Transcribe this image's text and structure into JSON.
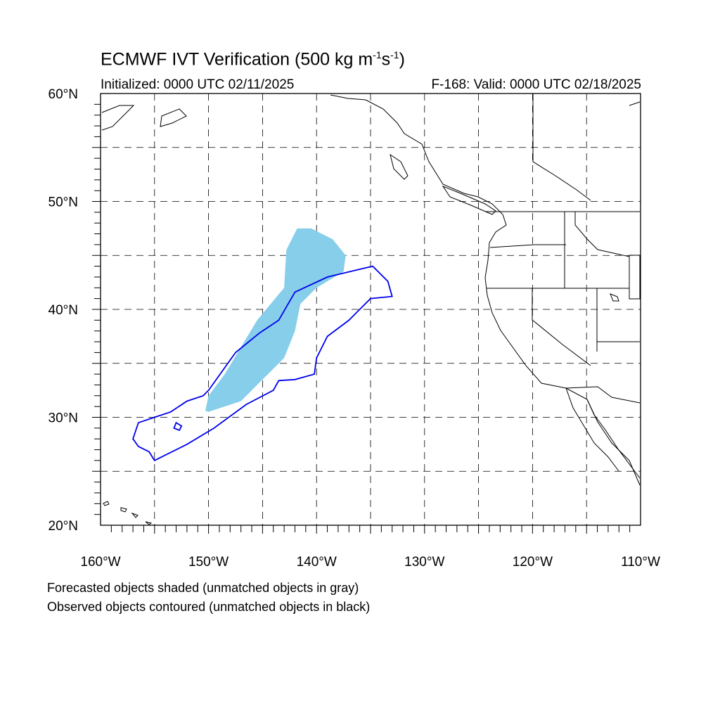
{
  "title": {
    "main": "ECMWF IVT Verification (500 kg m",
    "sup1": "-1",
    "mid": "s",
    "sup2": "-1",
    "end": ")"
  },
  "subtitle": {
    "initialized": "Initialized: 0000 UTC 02/11/2025",
    "valid": "F-168: Valid: 0000 UTC 02/18/2025"
  },
  "map_data": {
    "lon_range": [
      -160,
      -110
    ],
    "lat_range": [
      20,
      60
    ],
    "grid_lines": "dashed",
    "lat_labels": [
      "20°N",
      "30°N",
      "40°N",
      "50°N",
      "60°N"
    ],
    "lon_labels": [
      "160°W",
      "150°W",
      "140°W",
      "130°W",
      "120°W",
      "110°W"
    ],
    "forecast_object": {
      "style": "shaded",
      "color": "#87ceeb",
      "outline_lonlat": [
        [
          -150.3,
          30.6
        ],
        [
          -150.0,
          32.0
        ],
        [
          -148.5,
          34.0
        ],
        [
          -147.0,
          36.5
        ],
        [
          -145.5,
          39.0
        ],
        [
          -143.0,
          42.0
        ],
        [
          -142.8,
          45.5
        ],
        [
          -141.8,
          47.5
        ],
        [
          -140.5,
          47.5
        ],
        [
          -138.5,
          46.5
        ],
        [
          -137.3,
          45.0
        ],
        [
          -137.5,
          43.5
        ],
        [
          -140.0,
          42.0
        ],
        [
          -141.5,
          40.5
        ],
        [
          -142.0,
          38.0
        ],
        [
          -143.0,
          35.5
        ],
        [
          -145.0,
          33.5
        ],
        [
          -147.0,
          31.5
        ],
        [
          -148.5,
          31.0
        ],
        [
          -150.0,
          30.5
        ]
      ]
    },
    "observed_object": {
      "style": "contour",
      "color": "#0000ee",
      "outline_lonlat": [
        [
          -150.0,
          32.5
        ],
        [
          -147.5,
          36.0
        ],
        [
          -145.3,
          37.8
        ],
        [
          -143.5,
          39.0
        ],
        [
          -142.0,
          41.6
        ],
        [
          -139.0,
          43.0
        ],
        [
          -136.5,
          43.6
        ],
        [
          -134.8,
          44.0
        ],
        [
          -133.4,
          42.6
        ],
        [
          -133.0,
          41.2
        ],
        [
          -135.0,
          41.0
        ],
        [
          -137.0,
          39.0
        ],
        [
          -139.0,
          37.5
        ],
        [
          -140.0,
          35.5
        ],
        [
          -140.2,
          34.0
        ],
        [
          -142.0,
          33.5
        ],
        [
          -143.5,
          33.4
        ],
        [
          -144.0,
          32.5
        ],
        [
          -146.5,
          31.2
        ],
        [
          -149.5,
          29.0
        ],
        [
          -152.0,
          27.5
        ],
        [
          -154.0,
          26.5
        ],
        [
          -155.0,
          26.0
        ],
        [
          -155.5,
          26.8
        ],
        [
          -156.5,
          27.3
        ],
        [
          -157.0,
          28.0
        ],
        [
          -156.5,
          29.5
        ],
        [
          -155.0,
          30.0
        ],
        [
          -153.5,
          30.5
        ],
        [
          -152.0,
          31.5
        ],
        [
          -150.5,
          32.0
        ]
      ],
      "islands_lonlat": [
        [
          [
            -153.0,
            29.5
          ],
          [
            -152.5,
            29.2
          ],
          [
            -152.7,
            28.8
          ],
          [
            -153.2,
            29.0
          ]
        ]
      ]
    }
  },
  "footnotes": [
    "Forecasted objects shaded (unmatched objects in gray)",
    "Observed objects contoured (unmatched objects in black)"
  ]
}
